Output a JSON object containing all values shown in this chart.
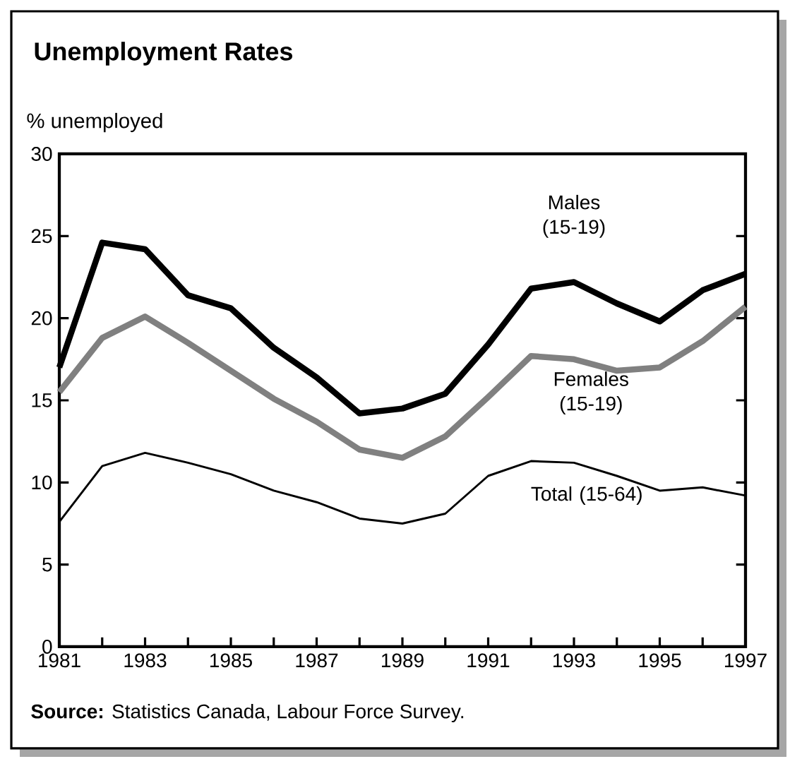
{
  "chart_data": {
    "type": "line",
    "title": "Unemployment Rates",
    "ylabel": "% unemployed",
    "x": [
      1981,
      1982,
      1983,
      1984,
      1985,
      1986,
      1987,
      1988,
      1989,
      1990,
      1991,
      1992,
      1993,
      1994,
      1995,
      1996,
      1997
    ],
    "series": [
      {
        "name": "Males (15-19)",
        "color": "#000000",
        "values": [
          17.0,
          24.6,
          24.2,
          21.4,
          20.6,
          18.2,
          16.4,
          14.2,
          14.5,
          15.4,
          18.4,
          21.8,
          22.2,
          20.9,
          19.8,
          21.7,
          22.7
        ]
      },
      {
        "name": "Females (15-19)",
        "color": "#808080",
        "values": [
          15.5,
          18.8,
          20.1,
          18.5,
          16.8,
          15.1,
          13.7,
          12.0,
          11.5,
          12.8,
          15.2,
          17.7,
          17.5,
          16.8,
          17.0,
          18.6,
          20.7
        ]
      },
      {
        "name": "Total (15-64)",
        "color": "#000000",
        "values": [
          7.6,
          11.0,
          11.8,
          11.2,
          10.5,
          9.5,
          8.8,
          7.8,
          7.5,
          8.1,
          10.4,
          11.3,
          11.2,
          10.4,
          9.5,
          9.7,
          9.2
        ]
      }
    ],
    "xlim": [
      1981,
      1997
    ],
    "xticks": [
      1981,
      {
        "value": 1982,
        "label": null
      },
      1983,
      {
        "value": 1984,
        "label": null
      },
      1985,
      {
        "value": 1986,
        "label": null
      },
      1987,
      {
        "value": 1988,
        "label": null
      },
      1989,
      {
        "value": 1990,
        "label": null
      },
      1991,
      {
        "value": 1992,
        "label": null
      },
      1993,
      {
        "value": 1994,
        "label": null
      },
      1995,
      {
        "value": 1996,
        "label": null
      },
      1997
    ],
    "ylim": [
      0,
      30
    ],
    "yticks": [
      0,
      5,
      10,
      15,
      20,
      25,
      30
    ],
    "grid": false,
    "legend": false,
    "marker": "none",
    "line_style": "solid",
    "annotations": [
      "**Source:** Statistics Canada, Labour Force Survey."
    ]
  }
}
